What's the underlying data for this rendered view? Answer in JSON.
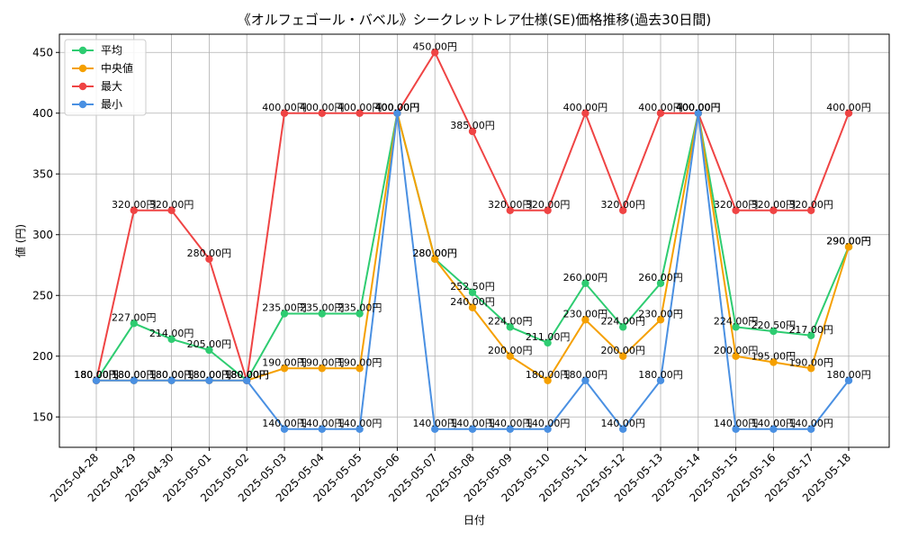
{
  "chart_data": {
    "type": "line",
    "title": "《オルフェゴール・バベル》シークレットレア仕様(SE)価格推移(過去30日間)",
    "xlabel": "日付",
    "ylabel": "値 (円)",
    "ylim": [
      125,
      465
    ],
    "yticks": [
      150,
      200,
      250,
      300,
      350,
      400,
      450
    ],
    "grid": true,
    "legend_position": "top-left",
    "label_suffix": "円",
    "categories": [
      "2025-04-28",
      "2025-04-29",
      "2025-04-30",
      "2025-05-01",
      "2025-05-02",
      "2025-05-03",
      "2025-05-04",
      "2025-05-05",
      "2025-05-06",
      "2025-05-07",
      "2025-05-08",
      "2025-05-09",
      "2025-05-10",
      "2025-05-11",
      "2025-05-12",
      "2025-05-13",
      "2025-05-14",
      "2025-05-15",
      "2025-05-16",
      "2025-05-17",
      "2025-05-18"
    ],
    "series": [
      {
        "name": "平均",
        "color": "#2ecc71",
        "values": [
          180,
          227,
          214,
          205,
          180,
          235,
          235,
          235,
          400,
          280,
          252.5,
          224,
          211,
          260,
          224,
          260,
          400,
          224,
          220.5,
          217,
          290
        ]
      },
      {
        "name": "中央値",
        "color": "#f5a000",
        "values": [
          180,
          180,
          180,
          180,
          180,
          190,
          190,
          190,
          400,
          280,
          240,
          200,
          180,
          230,
          200,
          230,
          400,
          200,
          195,
          190,
          290
        ]
      },
      {
        "name": "最大",
        "color": "#ef4444",
        "values": [
          180,
          320,
          320,
          280,
          180,
          400,
          400,
          400,
          400,
          450,
          385,
          320,
          320,
          400,
          320,
          400,
          400,
          320,
          320,
          320,
          400
        ]
      },
      {
        "name": "最小",
        "color": "#4a90e2",
        "values": [
          180,
          180,
          180,
          180,
          180,
          140,
          140,
          140,
          400,
          140,
          140,
          140,
          140,
          180,
          140,
          180,
          400,
          140,
          140,
          140,
          180
        ]
      }
    ]
  }
}
